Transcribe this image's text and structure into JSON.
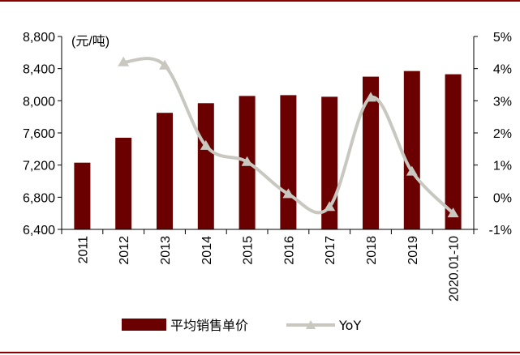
{
  "chart_data": {
    "type": "bar+line",
    "categories": [
      "2011",
      "2012",
      "2013",
      "2014",
      "2015",
      "2016",
      "2017",
      "2018",
      "2019",
      "2020.01-10"
    ],
    "series": [
      {
        "name": "平均销售单价",
        "type": "bar",
        "axis": "left",
        "color": "#6b0000",
        "values": [
          7230,
          7540,
          7850,
          7970,
          8060,
          8070,
          8050,
          8300,
          8370,
          8330
        ]
      },
      {
        "name": "YoY",
        "type": "line",
        "axis": "right",
        "color": "#c8c8c0",
        "marker": "triangle",
        "values": [
          null,
          4.2,
          4.1,
          1.6,
          1.1,
          0.1,
          -0.3,
          3.1,
          0.8,
          -0.5
        ]
      }
    ],
    "y_left": {
      "unit_label": "(元/吨)",
      "min": 6400,
      "max": 8800,
      "ticks": [
        "6,400",
        "6,800",
        "7,200",
        "7,600",
        "8,000",
        "8,400",
        "8,800"
      ]
    },
    "y_right": {
      "min": -1,
      "max": 5,
      "ticks": [
        "-1%",
        "0%",
        "1%",
        "2%",
        "3%",
        "4%",
        "5%"
      ]
    },
    "legend_position": "bottom",
    "grid": false
  }
}
